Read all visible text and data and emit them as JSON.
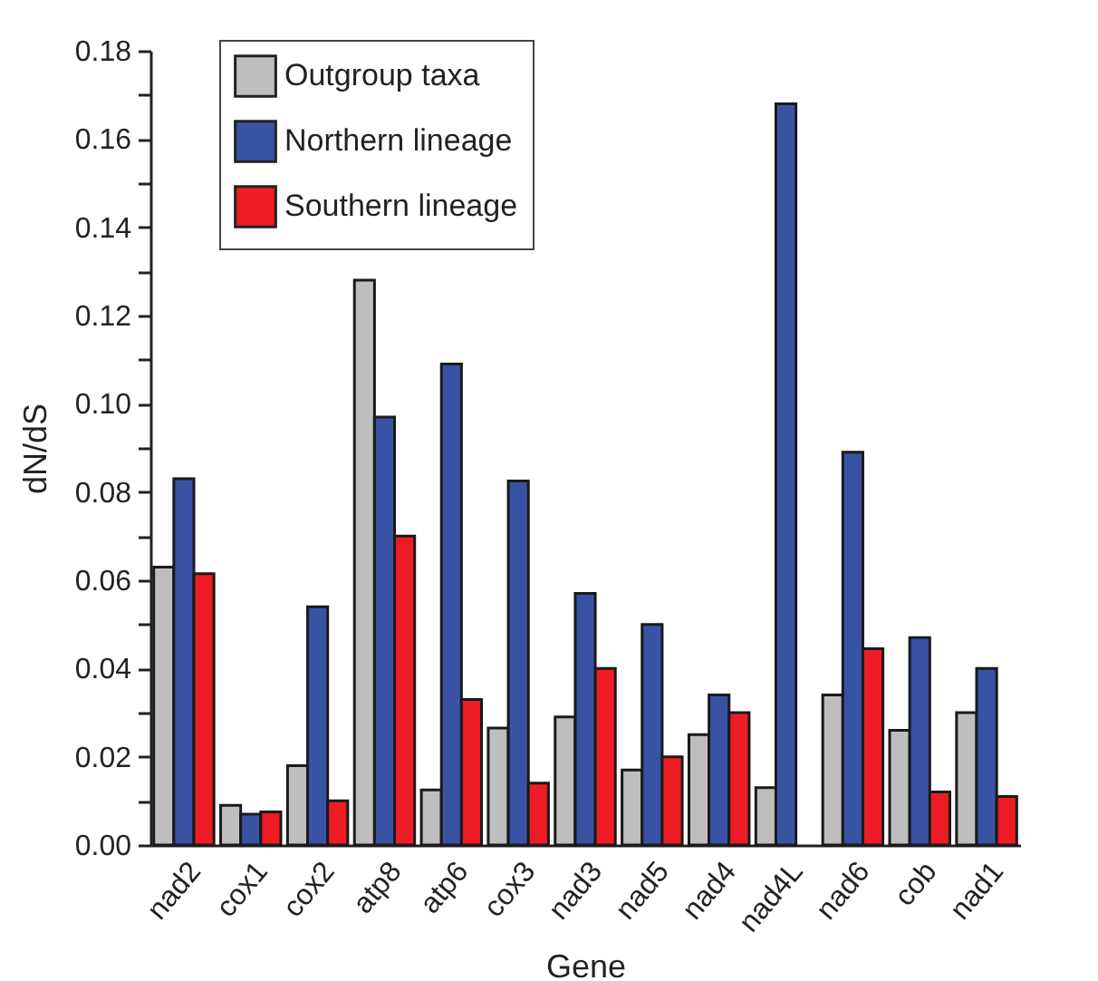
{
  "chart_data": {
    "type": "bar",
    "xlabel": "Gene",
    "ylabel": "dN/dS",
    "categories": [
      "nad2",
      "cox1",
      "cox2",
      "atp8",
      "atp6",
      "cox3",
      "nad3",
      "nad5",
      "nad4",
      "nad4L",
      "nad6",
      "cob",
      "nad1"
    ],
    "series": [
      {
        "name": "Outgroup taxa",
        "color": "#bebebe",
        "values": [
          0.063,
          0.009,
          0.018,
          0.128,
          0.0125,
          0.0265,
          0.029,
          0.017,
          0.025,
          0.013,
          0.034,
          0.026,
          0.03
        ]
      },
      {
        "name": "Northern lineage",
        "color": "#3953a4",
        "values": [
          0.083,
          0.007,
          0.054,
          0.097,
          0.109,
          0.0825,
          0.057,
          0.05,
          0.034,
          0.168,
          0.089,
          0.047,
          0.04
        ]
      },
      {
        "name": "Southern lineage",
        "color": "#ed1c24",
        "values": [
          0.0615,
          0.0075,
          0.01,
          0.07,
          0.033,
          0.014,
          0.04,
          0.02,
          0.03,
          null,
          0.0445,
          0.012,
          0.011
        ]
      }
    ],
    "ylim": [
      0,
      0.18
    ],
    "yticks": [
      {
        "value": 0,
        "label": "0.00"
      },
      {
        "value": 0.01,
        "label": null
      },
      0.02,
      {
        "value": 0.03,
        "label": null
      },
      0.04,
      {
        "value": 0.05,
        "label": null
      },
      0.06,
      {
        "value": 0.07,
        "label": null
      },
      0.08,
      {
        "value": 0.09,
        "label": null
      },
      {
        "value": 0.1,
        "label": "0.10"
      },
      {
        "value": 0.11,
        "label": null
      },
      0.12,
      {
        "value": 0.13,
        "label": null
      },
      0.14,
      {
        "value": 0.15,
        "label": null
      },
      0.16,
      {
        "value": 0.17,
        "label": null
      },
      0.18
    ],
    "grid": false,
    "legend": "top left"
  }
}
